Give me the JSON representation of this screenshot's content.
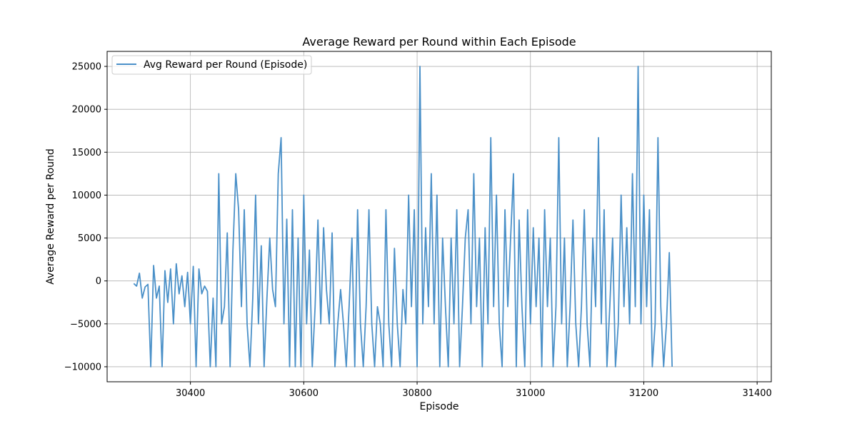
{
  "chart_data": {
    "type": "line",
    "title": "Average Reward per Round within Each Episode",
    "xlabel": "Episode",
    "ylabel": "Average Reward per Round",
    "xlim": [
      30300,
      31380
    ],
    "ylim": [
      -10000,
      25000
    ],
    "x_display_lim": [
      30253,
      31425
    ],
    "y_display_lim": [
      -11750,
      26750
    ],
    "xticks": [
      30400,
      30600,
      30800,
      31000,
      31200,
      31400
    ],
    "yticks": [
      -10000,
      -5000,
      0,
      5000,
      10000,
      15000,
      20000,
      25000
    ],
    "ytick_labels": [
      "−10000",
      "−5000",
      "0",
      "5000",
      "10000",
      "15000",
      "20000",
      "25000"
    ],
    "grid": true,
    "legend_position": "top-left",
    "line_color": "#4a90c8",
    "series": [
      {
        "name": "Avg Reward per Round (Episode)",
        "episode_start": 30300,
        "episode_step": 5,
        "values": [
          -300,
          -600,
          900,
          -2000,
          -700,
          -400,
          -10000,
          1800,
          -2000,
          -600,
          -10000,
          1200,
          -2500,
          1400,
          -5000,
          2000,
          -1500,
          600,
          -3000,
          1000,
          -5000,
          1700,
          -10000,
          1400,
          -1500,
          -600,
          -1200,
          -10000,
          -2000,
          -10000,
          12500,
          -5000,
          -3000,
          5600,
          -10000,
          3600,
          12500,
          8300,
          -3000,
          8300,
          -5000,
          -10000,
          -2000,
          10000,
          -5000,
          4100,
          -10000,
          -2000,
          5000,
          -1000,
          -3000,
          12500,
          16700,
          -5000,
          7200,
          -10000,
          8300,
          -10000,
          5000,
          -10000,
          10000,
          -5000,
          3600,
          -10000,
          -3000,
          7100,
          -5000,
          6200,
          -1000,
          -5000,
          5600,
          -10000,
          -5000,
          -1000,
          -5000,
          -10000,
          -3000,
          5000,
          -10000,
          8300,
          -5000,
          -10000,
          -3000,
          8300,
          -5000,
          -10000,
          -3000,
          -5000,
          -10000,
          8300,
          -5000,
          -10000,
          3800,
          -5000,
          -10000,
          -1000,
          -5000,
          10000,
          -3000,
          8300,
          -10000,
          25000,
          -5000,
          6200,
          -3000,
          12500,
          -5000,
          10000,
          -10000,
          5000,
          -3000,
          -10000,
          5000,
          -5000,
          8300,
          -10000,
          -3000,
          5000,
          8300,
          -5000,
          12500,
          -3000,
          5000,
          -10000,
          6200,
          -5000,
          16700,
          -3000,
          10000,
          -5000,
          -10000,
          8300,
          -3000,
          5000,
          12500,
          -10000,
          7100,
          -3000,
          -10000,
          8300,
          -5000,
          6200,
          -3000,
          5000,
          -10000,
          8300,
          -3000,
          5000,
          -10000,
          -3000,
          16700,
          -5000,
          5000,
          -10000,
          -3000,
          7100,
          -5000,
          -10000,
          -3000,
          8300,
          -5000,
          -10000,
          5000,
          -3000,
          16700,
          -5000,
          8300,
          -10000,
          -3000,
          5000,
          -10000,
          -5000,
          10000,
          -3000,
          6200,
          -5000,
          12500,
          -3000,
          25000,
          -5000,
          10000,
          -3000,
          8300,
          -10000,
          -5000,
          16700,
          -3000,
          -10000,
          -5000,
          3300,
          -10000
        ]
      }
    ]
  }
}
